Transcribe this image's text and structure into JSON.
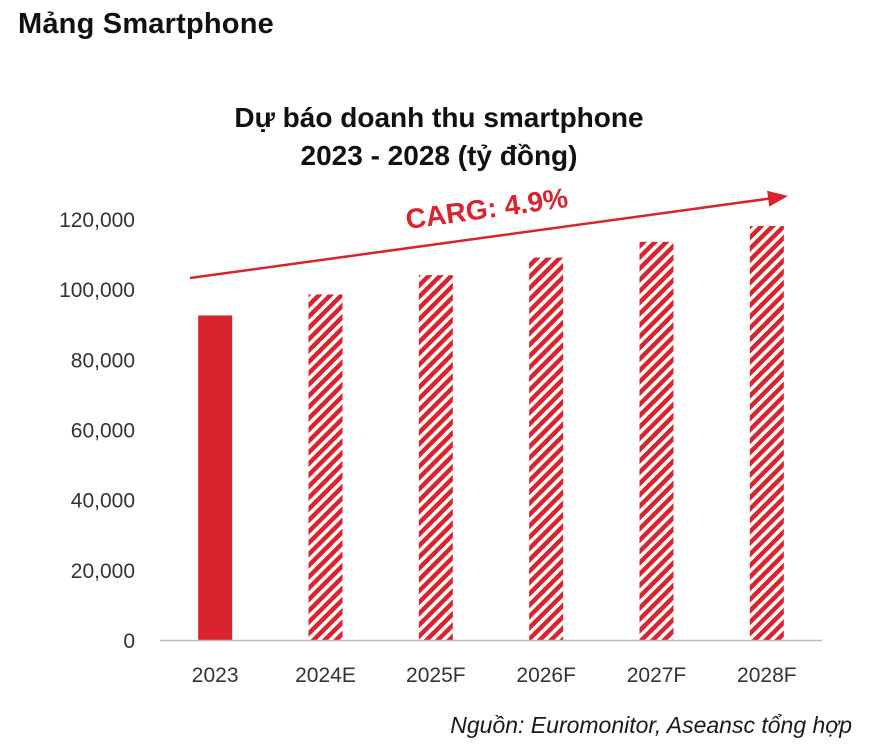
{
  "header": {
    "section_title": "Mảng Smartphone"
  },
  "footer": {
    "source": "Nguồn: Euromonitor, Aseansc tổng hợp"
  },
  "colors": {
    "accent": "#d9232e"
  },
  "chart_data": {
    "type": "bar",
    "title": [
      "Dự báo doanh thu smartphone",
      "2023 - 2028 (tỷ đồng)"
    ],
    "categories": [
      "2023",
      "2024E",
      "2025F",
      "2026F",
      "2027F",
      "2028F"
    ],
    "values": [
      92500,
      98500,
      104000,
      109000,
      113500,
      118000
    ],
    "bar_styles": [
      "solid",
      "hatched",
      "hatched",
      "hatched",
      "hatched",
      "hatched"
    ],
    "ylim": [
      0,
      120000
    ],
    "yticks": [
      "0",
      "20,000",
      "40,000",
      "60,000",
      "80,000",
      "100,000",
      "120,000"
    ],
    "annotation": "CARG: 4.9%",
    "grid": false
  }
}
